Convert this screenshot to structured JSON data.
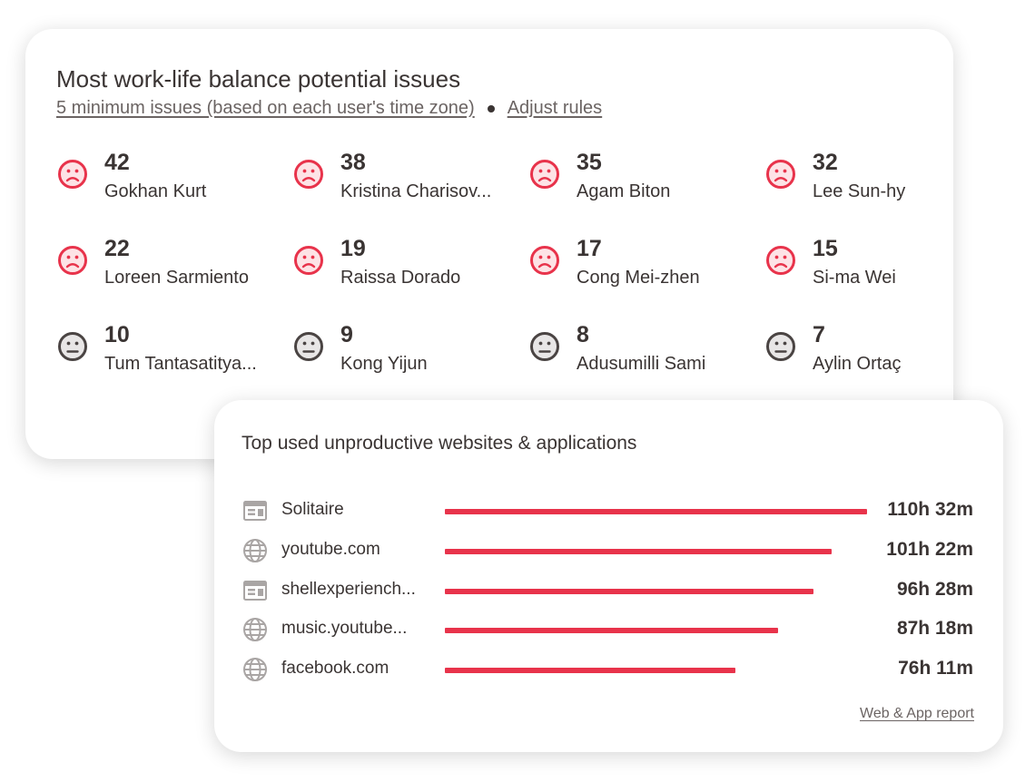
{
  "colors": {
    "sad": "#e8334b",
    "sad_fill": "#fde3e6",
    "neutral": "#4a4443",
    "neutral_fill": "#e8e6e6",
    "bar": "#e8334b"
  },
  "balance_card": {
    "title": "Most work-life balance potential issues",
    "subtitle_link": "5 minimum issues (based on each user's time zone)",
    "adjust_link": "Adjust rules",
    "users": [
      {
        "count": "42",
        "name": "Gokhan Kurt",
        "mood": "sad"
      },
      {
        "count": "38",
        "name": "Kristina Charisov...",
        "mood": "sad"
      },
      {
        "count": "35",
        "name": "Agam Biton",
        "mood": "sad"
      },
      {
        "count": "32",
        "name": "Lee Sun-hy",
        "mood": "sad"
      },
      {
        "count": "22",
        "name": "Loreen Sarmiento",
        "mood": "sad"
      },
      {
        "count": "19",
        "name": "Raissa Dorado",
        "mood": "sad"
      },
      {
        "count": "17",
        "name": "Cong Mei-zhen",
        "mood": "sad"
      },
      {
        "count": "15",
        "name": "Si-ma Wei",
        "mood": "sad"
      },
      {
        "count": "10",
        "name": "Tum Tantasatitya...",
        "mood": "neutral"
      },
      {
        "count": "9",
        "name": "Kong Yijun",
        "mood": "neutral"
      },
      {
        "count": "8",
        "name": "Adusumilli Sami",
        "mood": "neutral"
      },
      {
        "count": "7",
        "name": "Aylin Ortaç",
        "mood": "neutral"
      }
    ]
  },
  "apps_card": {
    "title": "Top used unproductive websites & applications",
    "report_link": "Web & App report",
    "items": [
      {
        "name": "Solitaire",
        "icon": "app-window-icon",
        "time": "110h 32m",
        "minutes": 6632
      },
      {
        "name": "youtube.com",
        "icon": "globe-icon",
        "time": "101h 22m",
        "minutes": 6082
      },
      {
        "name": "shellexperiench...",
        "icon": "app-window-icon",
        "time": "96h 28m",
        "minutes": 5788
      },
      {
        "name": "music.youtube...",
        "icon": "globe-icon",
        "time": "87h 18m",
        "minutes": 5238
      },
      {
        "name": "facebook.com",
        "icon": "globe-icon",
        "time": "76h 11m",
        "minutes": 4571
      }
    ]
  }
}
